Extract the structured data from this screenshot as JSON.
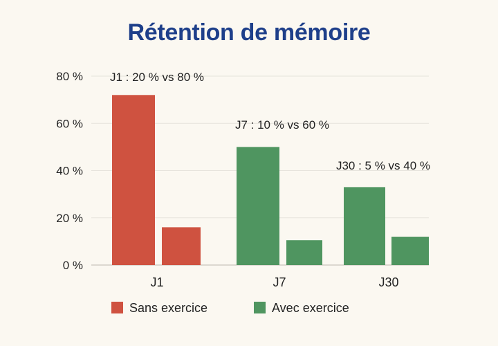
{
  "chart_data": {
    "type": "bar",
    "title": "Rétention de mémoire",
    "categories": [
      "J1",
      "J7",
      "J30"
    ],
    "series": [
      {
        "name": "Sans exercice",
        "color": "#cf5240",
        "values": [
          72,
          null,
          null
        ]
      },
      {
        "name": "Avec exercice",
        "color": "#4f9560",
        "values": [
          null,
          50,
          33
        ]
      }
    ],
    "secondary_bars": [
      {
        "category": "J1",
        "value": 16,
        "color": "#cf5240"
      },
      {
        "category": "J7",
        "value": 10.5,
        "color": "#4f9560"
      },
      {
        "category": "J30",
        "value": 12,
        "color": "#4f9560"
      }
    ],
    "annotations": [
      {
        "category": "J1",
        "text": "J1 : 20 % vs 80 %",
        "value": 80
      },
      {
        "category": "J7",
        "text": "J7 : 10 % vs 60 %",
        "value": 60
      },
      {
        "category": "J30",
        "text": "J30 : 5 % vs 40 %",
        "value": 42
      }
    ],
    "ytick_labels": [
      "0 %",
      "20 %",
      "40 %",
      "60 %",
      "80 %"
    ],
    "ytick_values": [
      0,
      20,
      40,
      60,
      80
    ],
    "ylim": [
      0,
      80
    ],
    "grid": true,
    "legend_position": "bottom",
    "title_color": "#1e3f8a"
  }
}
